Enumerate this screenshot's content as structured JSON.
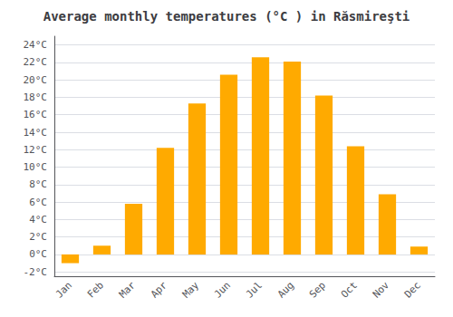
{
  "chart_data": {
    "type": "bar",
    "title": "Average monthly temperatures (°C ) in Răsmireşti",
    "categories": [
      "Jan",
      "Feb",
      "Mar",
      "Apr",
      "May",
      "Jun",
      "Jul",
      "Aug",
      "Sep",
      "Oct",
      "Nov",
      "Dec"
    ],
    "values": [
      -1.0,
      1.0,
      5.8,
      12.2,
      17.3,
      20.6,
      22.6,
      22.1,
      18.2,
      12.4,
      6.9,
      0.9
    ],
    "color": "#FFAA00",
    "ylim": [
      -2.5,
      25
    ],
    "yticks": [
      {
        "value": -2,
        "label": "-2°C"
      },
      {
        "value": 0,
        "label": "0°C"
      },
      {
        "value": 2,
        "label": "2°C"
      },
      {
        "value": 4,
        "label": "4°C"
      },
      {
        "value": 6,
        "label": "6°C"
      },
      {
        "value": 8,
        "label": "8°C"
      },
      {
        "value": 10,
        "label": "10°C"
      },
      {
        "value": 12,
        "label": "12°C"
      },
      {
        "value": 14,
        "label": "14°C"
      },
      {
        "value": 16,
        "label": "16°C"
      },
      {
        "value": 18,
        "label": "18°C"
      },
      {
        "value": 20,
        "label": "20°C"
      },
      {
        "value": 22,
        "label": "22°C"
      },
      {
        "value": 24,
        "label": "24°C"
      }
    ],
    "grid": true
  }
}
